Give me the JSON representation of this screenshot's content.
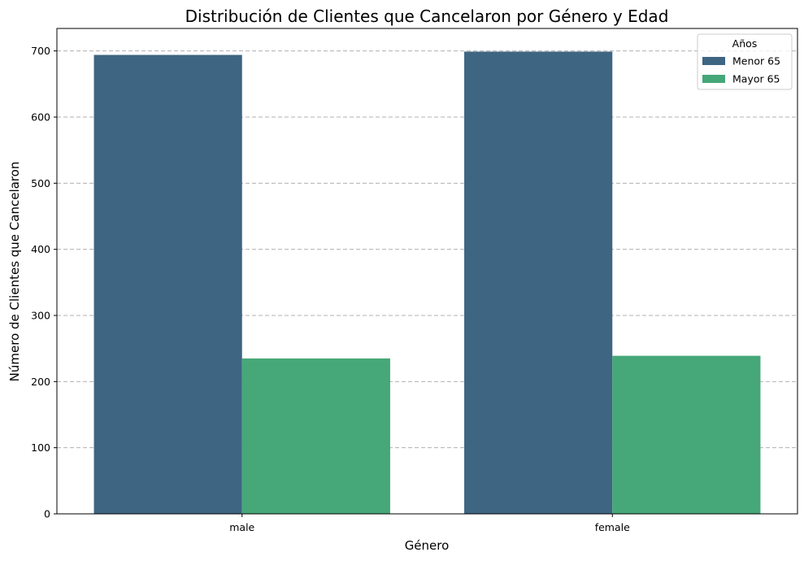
{
  "chart_data": {
    "type": "bar",
    "title": "Distribución de Clientes que Cancelaron por Género y Edad",
    "xlabel": "Género",
    "ylabel": "Número de Clientes que Cancelaron",
    "categories": [
      "male",
      "female"
    ],
    "series": [
      {
        "name": "Menor 65",
        "values": [
          694,
          699
        ],
        "color": "#3e6582"
      },
      {
        "name": "Mayor 65",
        "values": [
          235,
          239
        ],
        "color": "#46a778"
      }
    ],
    "ylim": [
      0,
      734
    ],
    "yticks": [
      0,
      100,
      200,
      300,
      400,
      500,
      600,
      700
    ],
    "grid": true,
    "grid_axis": "y",
    "legend": {
      "title": "Años",
      "position": "top-right"
    }
  }
}
